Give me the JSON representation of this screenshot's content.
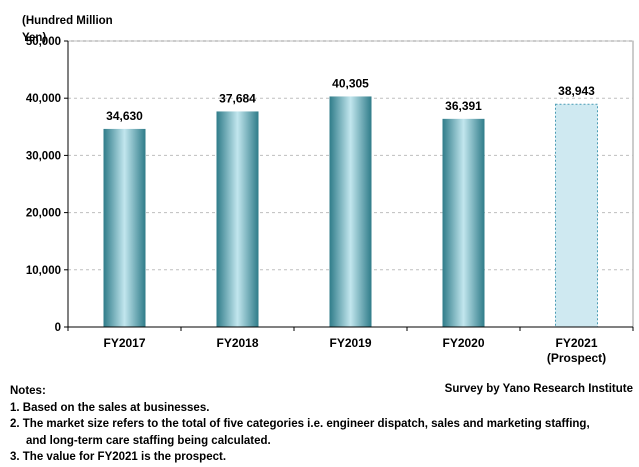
{
  "chart_data": {
    "type": "bar",
    "unit_label": "(Hundred Million Yen)",
    "categories": [
      "FY2017",
      "FY2018",
      "FY2019",
      "FY2020",
      "FY2021"
    ],
    "category_sublabels": [
      "",
      "",
      "",
      "",
      "(Prospect)"
    ],
    "values": [
      34630,
      37684,
      40305,
      36391,
      38943
    ],
    "value_labels": [
      "34,630",
      "37,684",
      "40,305",
      "36,391",
      "38,943"
    ],
    "projected": [
      false,
      false,
      false,
      false,
      true
    ],
    "ylim": [
      0,
      50000
    ],
    "yticks": [
      0,
      10000,
      20000,
      30000,
      40000,
      50000
    ],
    "ytick_labels": [
      "0",
      "10,000",
      "20,000",
      "30,000",
      "40,000",
      "50,000"
    ],
    "grid": "horizontal-dashed",
    "colors": {
      "bar_dark": "#2f7c89",
      "bar_light": "#c2e6ee",
      "projected_fill": "#cfe9f1",
      "projected_border": "#4a9cb5",
      "grid": "#bfbfbf",
      "axis": "#000000"
    }
  },
  "source": "Survey by Yano Research Institute",
  "notes": {
    "heading": "Notes:",
    "items": [
      "1. Based on the sales at businesses.",
      "2. The market size refers to the total of five categories i.e. engineer dispatch, sales and marketing staffing,",
      "and long-term care staffing being calculated.",
      "3. The value for FY2021 is the prospect."
    ]
  }
}
